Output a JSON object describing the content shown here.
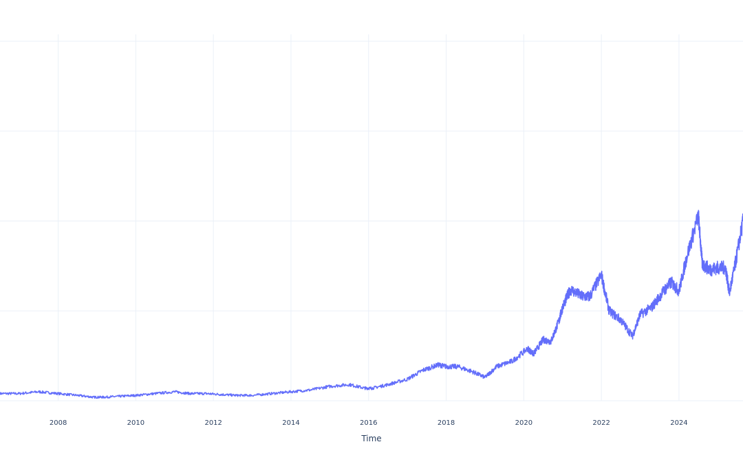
{
  "chart_data": {
    "type": "line",
    "title": "",
    "xlabel": "Time",
    "ylabel": "",
    "x_tick_labels": [
      "2008",
      "2010",
      "2012",
      "2014",
      "2016",
      "2018",
      "2020",
      "2022",
      "2024"
    ],
    "x_ticks": [
      2008,
      2010,
      2012,
      2014,
      2016,
      2018,
      2020,
      2022,
      2024
    ],
    "xlim": [
      2006.5,
      2025.65
    ],
    "ylim": [
      0,
      2
    ],
    "y_gridlines": [
      0,
      0.5,
      1,
      1.5,
      2
    ],
    "grid": true,
    "line_color": "#636efa",
    "series": [
      {
        "values_x": [
          2006.5,
          2007.0,
          2007.5,
          2008.0,
          2008.5,
          2008.9,
          2009.2,
          2009.6,
          2010.0,
          2010.5,
          2011.0,
          2011.4,
          2011.8,
          2012.2,
          2012.6,
          2013.0,
          2013.5,
          2014.0,
          2014.5,
          2015.0,
          2015.5,
          2015.9,
          2016.1,
          2016.5,
          2017.0,
          2017.4,
          2017.8,
          2018.0,
          2018.3,
          2018.7,
          2019.0,
          2019.3,
          2019.7,
          2020.1,
          2020.25,
          2020.5,
          2020.7,
          2020.9,
          2021.0,
          2021.2,
          2021.5,
          2021.7,
          2022.0,
          2022.2,
          2022.5,
          2022.8,
          2023.0,
          2023.3,
          2023.6,
          2023.8,
          2024.0,
          2024.2,
          2024.5,
          2024.6,
          2024.8,
          2025.0,
          2025.2,
          2025.3,
          2025.45,
          2025.65
        ],
        "values_y": [
          0.04,
          0.04,
          0.05,
          0.04,
          0.03,
          0.02,
          0.02,
          0.025,
          0.03,
          0.04,
          0.05,
          0.04,
          0.04,
          0.035,
          0.03,
          0.03,
          0.04,
          0.05,
          0.06,
          0.08,
          0.09,
          0.07,
          0.07,
          0.09,
          0.12,
          0.17,
          0.2,
          0.19,
          0.19,
          0.16,
          0.13,
          0.19,
          0.22,
          0.29,
          0.26,
          0.34,
          0.33,
          0.44,
          0.52,
          0.62,
          0.58,
          0.58,
          0.7,
          0.5,
          0.45,
          0.36,
          0.48,
          0.52,
          0.61,
          0.66,
          0.61,
          0.8,
          1.03,
          0.76,
          0.73,
          0.74,
          0.74,
          0.6,
          0.76,
          1.0
        ]
      }
    ]
  }
}
